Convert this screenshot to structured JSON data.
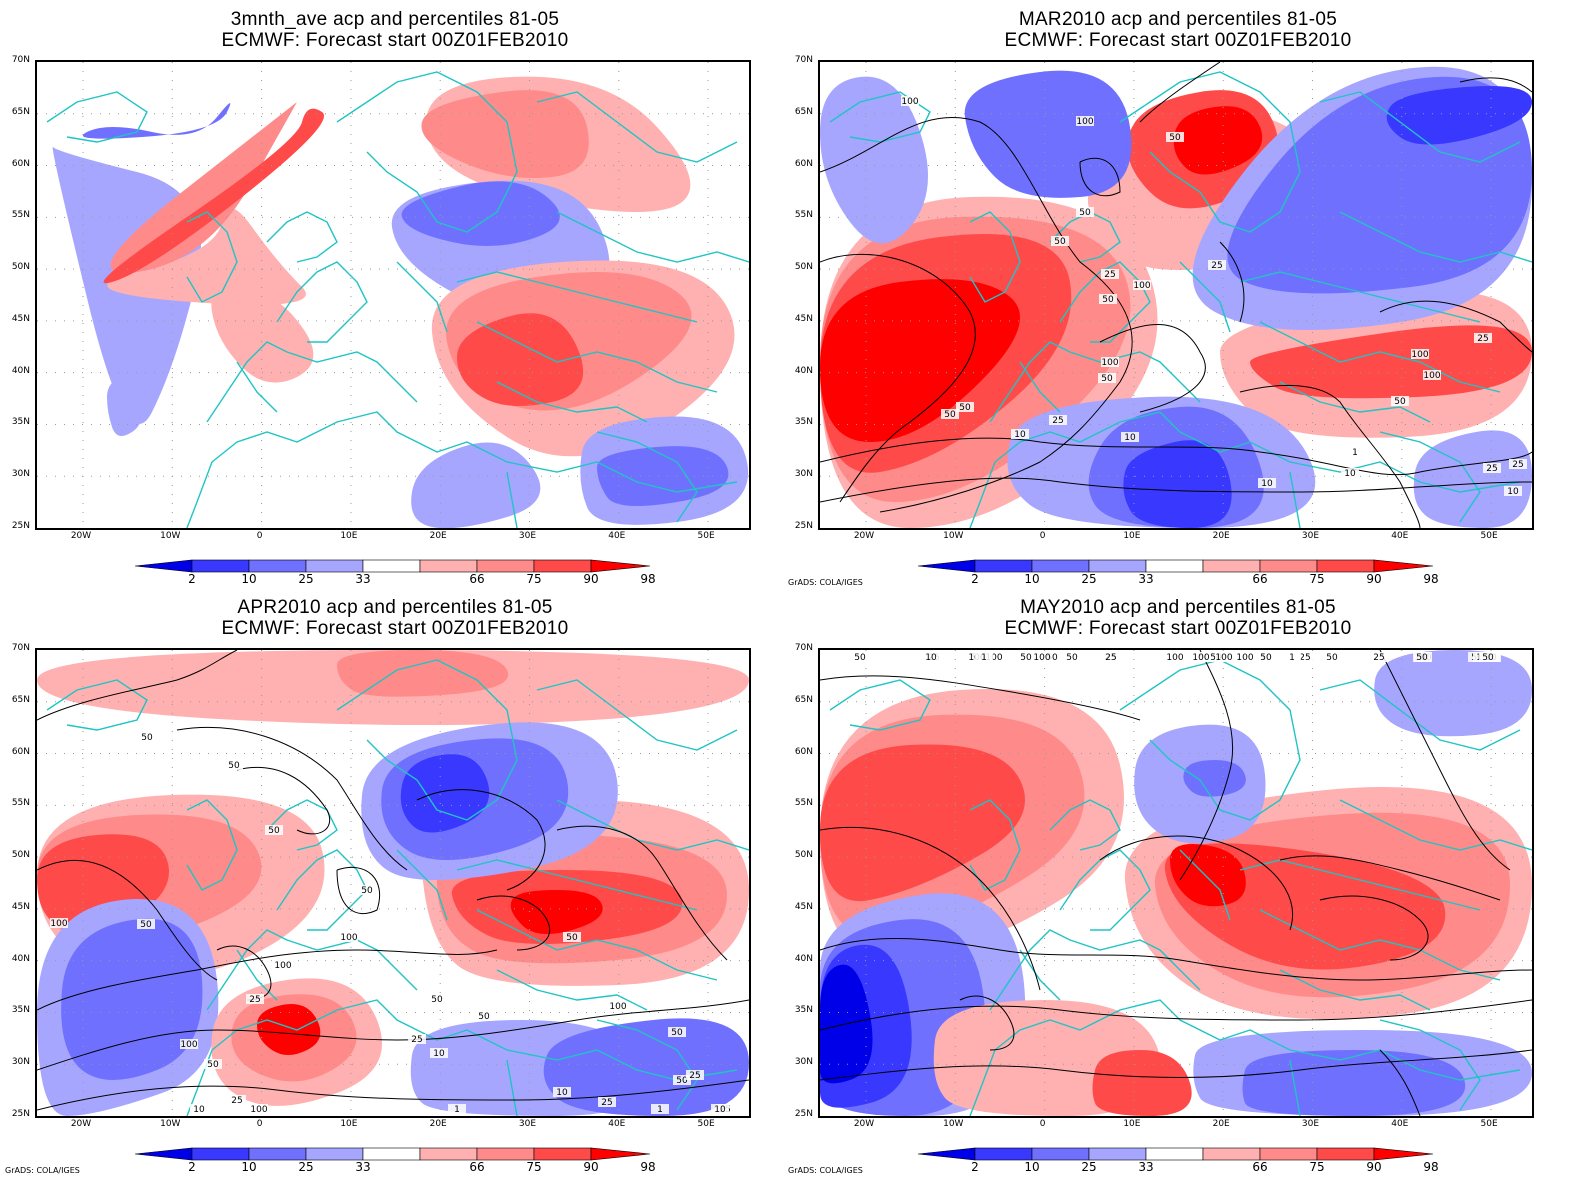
{
  "colors": {
    "red_98": "#ff0000",
    "red_90": "#ff4a4a",
    "red_75": "#ff8a8a",
    "red_66": "#ffb0b0",
    "blue_33": "#a6a6ff",
    "blue_25": "#7070ff",
    "blue_10": "#3838ff",
    "blue_2": "#0000e8",
    "coast": "#20c4c4",
    "contour": "#000000",
    "grid": "#999999"
  },
  "lat_labels": [
    "70N",
    "65N",
    "60N",
    "55N",
    "50N",
    "45N",
    "40N",
    "35N",
    "30N",
    "25N"
  ],
  "lon_labels": [
    "20W",
    "10W",
    "0",
    "10E",
    "20E",
    "30E",
    "40E",
    "50E"
  ],
  "colorbar_labels": [
    "2",
    "10",
    "25",
    "33",
    "66",
    "75",
    "90",
    "98"
  ],
  "credit": "GrADS: COLA/IGES",
  "panels": [
    {
      "line1": "3mnth_ave acp and percentiles 81-05",
      "line2": "ECMWF: Forecast start 00Z01FEB2010",
      "show_credit": false,
      "contour_labels": []
    },
    {
      "line1": "MAR2010 acp and percentiles 81-05",
      "line2": "ECMWF: Forecast start 00Z01FEB2010",
      "show_credit": true,
      "contour_labels": [
        "100",
        "100",
        "50",
        "50",
        "50",
        "50",
        "25",
        "25",
        "50",
        "100",
        "100",
        "50",
        "100",
        "100",
        "50",
        "25",
        "25",
        "10",
        "10",
        "1",
        "10",
        "50",
        "25",
        "25",
        "10",
        "10"
      ]
    },
    {
      "line1": "APR2010 acp and percentiles 81-05",
      "line2": "ECMWF: Forecast start 00Z01FEB2010",
      "show_credit": true,
      "contour_labels": [
        "50",
        "50",
        "50",
        "50",
        "100",
        "100",
        "100",
        "50",
        "100",
        "50",
        "50",
        "50",
        "50",
        "100",
        "25",
        "25",
        "25",
        "10",
        "50",
        "100",
        "10",
        "25",
        "50",
        "25",
        "10",
        "1",
        "1",
        "10",
        "25"
      ]
    },
    {
      "line1": "MAY2010 acp and percentiles 81-05",
      "line2": "ECMWF: Forecast start 00Z01FEB2010",
      "show_credit": true,
      "contour_labels": [
        "50",
        "50",
        "50",
        "50",
        "100",
        "50",
        "50",
        "50",
        "100",
        "100",
        "100",
        "50",
        "100",
        "100",
        "50",
        "100",
        "25",
        "25",
        "25",
        "100",
        "25",
        "10",
        "50",
        "25",
        "10",
        "1",
        "50",
        "25",
        "10",
        "1",
        "25",
        "10",
        "50",
        "50"
      ]
    }
  ]
}
